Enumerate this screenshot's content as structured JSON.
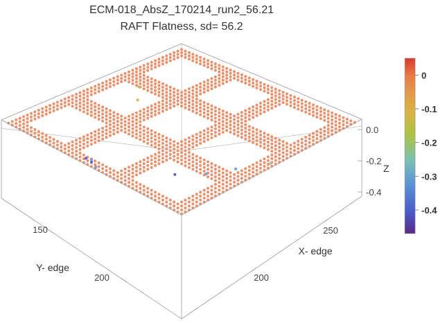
{
  "chart_data": {
    "type": "scatter3d",
    "title": "ECM-018_AbsZ_170214_run2_56.21",
    "subtitle": "RAFT Flatness, sd= 56.2",
    "xlabel": "X- edge",
    "ylabel": "Y- edge",
    "zlabel": "Z",
    "x_ticks": [
      "200",
      "250"
    ],
    "y_ticks": [
      "150",
      "200"
    ],
    "z_ticks": [
      "0.0",
      "-0.2",
      "-0.4"
    ],
    "colorbar_ticks": [
      "0",
      "-0.1",
      "-0.2",
      "-0.3",
      "-0.4"
    ],
    "colorbar_range": [
      -0.47,
      0.05
    ],
    "point_color": "#e8936f",
    "points_description": "dense flat grid of points near Z=0 with rectangular cut-outs; a few scattered outliers down to about -0.45",
    "outliers": [
      {
        "x": 175,
        "y": 205,
        "z": -0.42
      },
      {
        "x": 180,
        "y": 205,
        "z": -0.43
      },
      {
        "x": 188,
        "y": 210,
        "z": -0.3
      },
      {
        "x": 195,
        "y": 212,
        "z": -0.32
      },
      {
        "x": 230,
        "y": 190,
        "z": -0.4
      },
      {
        "x": 245,
        "y": 182,
        "z": -0.38
      },
      {
        "x": 260,
        "y": 175,
        "z": -0.3
      },
      {
        "x": 275,
        "y": 165,
        "z": -0.25
      },
      {
        "x": 150,
        "y": 160,
        "z": -0.15
      },
      {
        "x": 165,
        "y": 170,
        "z": -0.12
      }
    ]
  }
}
